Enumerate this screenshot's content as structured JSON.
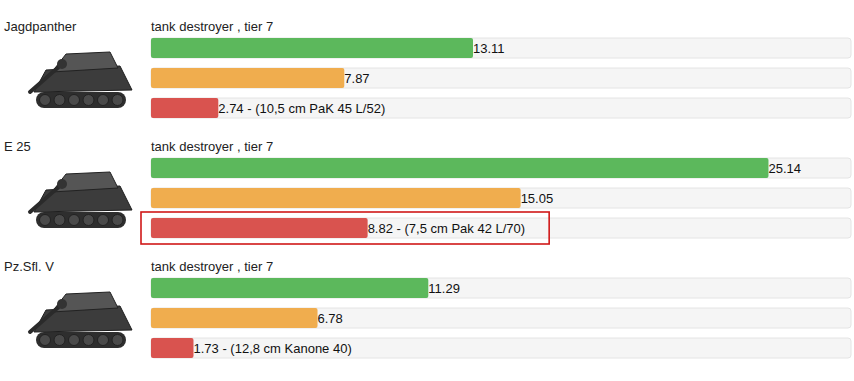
{
  "chart_data": [
    {
      "type": "bar",
      "title": "Jagdpanther",
      "subtitle": "tank destroyer , tier 7",
      "orientation": "horizontal",
      "categories": [
        null,
        null,
        null
      ],
      "values": [
        13.11,
        7.87,
        2.74
      ],
      "value_labels": [
        "13.11",
        "7.87",
        "2.74 - (10,5 cm PaK 45 L/52)"
      ],
      "colors": [
        "#5cb85c",
        "#f0ad4e",
        "#d9534f"
      ],
      "xlim": [
        0,
        28.5
      ],
      "tick_labels": false,
      "data_labels": true
    },
    {
      "type": "bar",
      "title": "E 25",
      "subtitle": "tank destroyer , tier 7",
      "orientation": "horizontal",
      "categories": [
        null,
        null,
        null
      ],
      "values": [
        25.14,
        15.05,
        8.82
      ],
      "value_labels": [
        "25.14",
        "15.05",
        "8.82 - (7,5 cm Pak 42 L/70)"
      ],
      "colors": [
        "#5cb85c",
        "#f0ad4e",
        "#d9534f"
      ],
      "xlim": [
        0,
        28.5
      ],
      "tick_labels": false,
      "data_labels": true
    },
    {
      "type": "bar",
      "title": "Pz.Sfl. V",
      "subtitle": "tank destroyer , tier 7",
      "orientation": "horizontal",
      "categories": [
        null,
        null,
        null
      ],
      "values": [
        11.29,
        6.78,
        1.73
      ],
      "value_labels": [
        "11.29",
        "6.78",
        "1.73 - (12,8 cm Kanone 40)"
      ],
      "colors": [
        "#5cb85c",
        "#f0ad4e",
        "#d9534f"
      ],
      "xlim": [
        0,
        28.5
      ],
      "tick_labels": false,
      "data_labels": true
    }
  ]
}
